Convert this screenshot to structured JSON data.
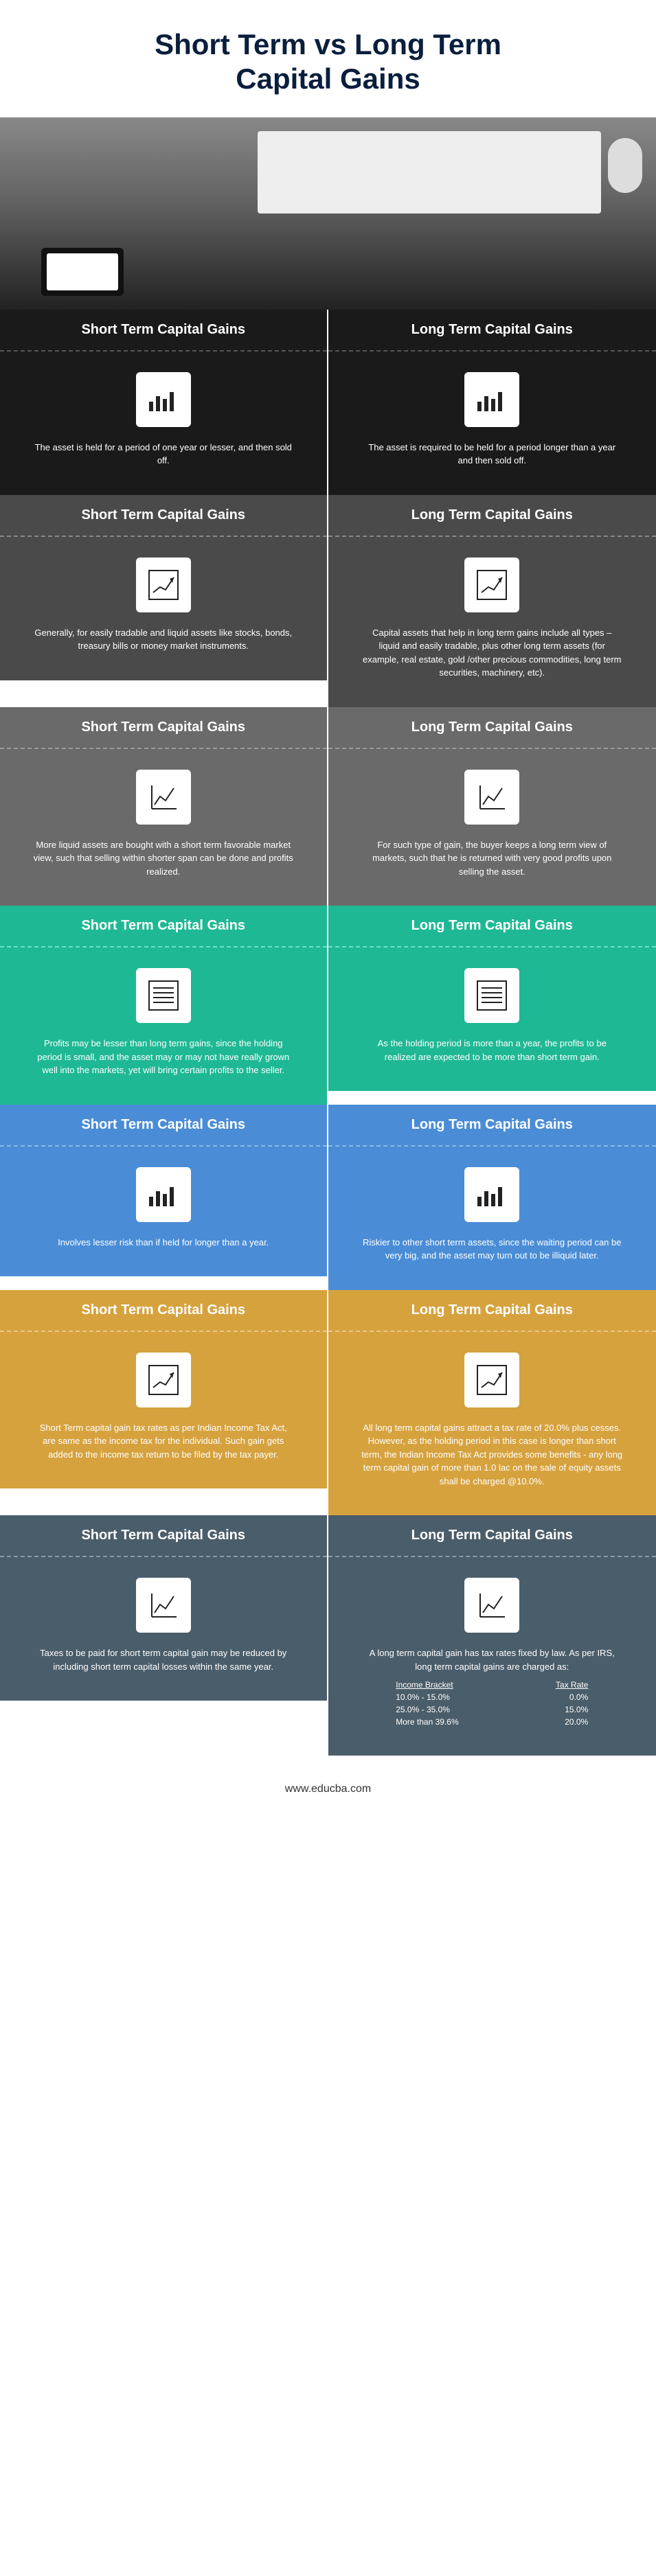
{
  "title_line1": "Short Term vs Long Term",
  "title_line2": "Capital Gains",
  "footer_url": "www.educba.com",
  "labels": {
    "short": "Short Term Capital Gains",
    "long": "Long Term Capital Gains"
  },
  "sections": [
    {
      "header_class": "header-black",
      "body_class": "body-black",
      "icon": "bars",
      "short": "The asset is held for a period of one year or lesser, and then sold off.",
      "long": "The asset is required to be held for a period longer than a year and then sold off."
    },
    {
      "header_class": "header-darkgray",
      "body_class": "body-darkgray",
      "icon": "lineup",
      "short": "Generally, for easily tradable and liquid assets like stocks, bonds, treasury bills or money market instruments.",
      "long": "Capital assets that help in long term gains include all types – liquid and easily tradable, plus other long term assets (for example, real estate, gold /other precious commodities, long term securities, machinery, etc)."
    },
    {
      "header_class": "header-gray",
      "body_class": "body-gray",
      "icon": "chart",
      "short": "More liquid assets are bought with a short term favorable market view, such that selling within shorter span can be done and profits realized.",
      "long": "For such type of gain, the buyer keeps a long term view of markets, such that he is returned with very good profits upon selling the asset."
    },
    {
      "header_class": "header-teal",
      "body_class": "body-teal",
      "icon": "lines",
      "short": "Profits may be lesser than long term gains, since the holding period is small, and the asset may or may not have really grown well into the markets, yet will bring certain profits to the seller.",
      "long": "As the holding period is more than a year, the profits to be realized are expected to be more than short term gain."
    },
    {
      "header_class": "header-blue",
      "body_class": "body-blue",
      "icon": "bars",
      "short": "Involves lesser risk than if held for longer than a year.",
      "long": "Riskier to other short term assets, since the waiting period can be very big, and the asset may turn out to be illiquid later."
    },
    {
      "header_class": "header-gold",
      "body_class": "body-gold",
      "icon": "lineup",
      "short": "Short Term capital gain tax rates as per Indian Income Tax Act, are same as the income tax for the individual. Such gain gets added to the income tax return to be filed by the tax payer.",
      "long": "All long term capital gains attract a tax rate of 20.0% plus cesses. However, as the holding period in this case is longer than short term, the Indian Income Tax Act provides some benefits - any long term capital gain of more than 1.0 lac on the sale of equity assets shall be charged @10.0%."
    },
    {
      "header_class": "header-slate",
      "body_class": "body-slate",
      "icon": "chart",
      "short": "Taxes to be paid for short term capital gain may be reduced by including short term capital losses within the same year.",
      "long_intro": "A long term capital gain has tax rates fixed by law. As per IRS, long term capital gains are charged as:",
      "tax_headers": {
        "col1": "Income Bracket",
        "col2": "Tax Rate"
      },
      "tax_rows": [
        {
          "bracket": "10.0% - 15.0%",
          "rate": "0.0%"
        },
        {
          "bracket": "25.0% - 35.0%",
          "rate": "15.0%"
        },
        {
          "bracket": "More than 39.6%",
          "rate": "20.0%"
        }
      ]
    }
  ],
  "icons": {
    "bars": "<rect x='4' y='28' width='6' height='14' fill='#222'/><rect x='14' y='20' width='6' height='22' fill='#222'/><rect x='24' y='24' width='6' height='18' fill='#222'/><rect x='34' y='14' width='6' height='28' fill='#222'/>",
    "lineup": "<rect x='4' y='4' width='42' height='42' fill='none' stroke='#222' stroke-width='2'/><polyline points='10,36 20,28 28,32 40,14' fill='none' stroke='#222' stroke-width='2'/><polygon points='40,14 34,16 38,22' fill='#222'/>",
    "chart": "<line x1='8' y1='8' x2='8' y2='42' stroke='#222' stroke-width='2'/><line x1='8' y1='42' x2='44' y2='42' stroke='#222' stroke-width='2'/><polyline points='12,36 20,24 28,30 40,12' fill='none' stroke='#222' stroke-width='2'/>",
    "lines": "<rect x='4' y='4' width='42' height='42' fill='none' stroke='#222' stroke-width='2'/><line x1='10' y1='14' x2='40' y2='14' stroke='#222' stroke-width='2'/><line x1='10' y1='21' x2='40' y2='21' stroke='#222' stroke-width='2'/><line x1='10' y1='28' x2='40' y2='28' stroke='#222' stroke-width='2'/><line x1='10' y1='35' x2='40' y2='35' stroke='#222' stroke-width='2'/>"
  }
}
